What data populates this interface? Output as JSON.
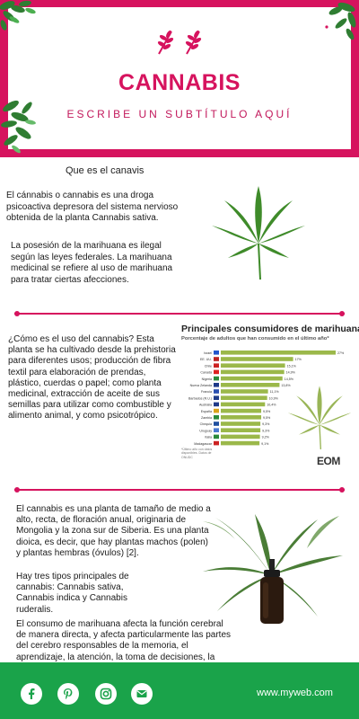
{
  "header": {
    "title": "CANNABIS",
    "subtitle": "ESCRIBE UN SUBTÍTULO AQUÍ"
  },
  "section1": {
    "heading": "Que es el canavis",
    "p1": "El cánnabis o cannabis  es una droga psicoactiva depresora del sistema nervioso obtenida de la planta Cannabis sativa.",
    "p2": "La posesión de la marihuana es ilegal según las leyes federales. La marihuana medicinal se refiere al uso de marihuana para tratar ciertas afecciones."
  },
  "section2": {
    "p": "¿Cómo es el uso del cannabis? Esta planta se ha cultivado desde la prehistoria para diferentes usos; producción de fibra textil para elaboración de prendas, plástico, cuerdas o papel; como planta medicinal, extracción de aceite de sus semillas para utilizar como combustible y alimento animal, y como psicotrópico."
  },
  "chart_data": {
    "type": "bar",
    "title": "Principales consumidores de marihuana",
    "subtitle": "Porcentaje de adultos que han consumido en el último año*",
    "categories": [
      "Israel",
      "EE. UU.",
      "Chile",
      "Canadá",
      "Nigeria",
      "Nueva Zelanda",
      "Francia",
      "Barbados (R.U.)",
      "Australia",
      "España",
      "Zambia",
      "Chequia",
      "Uruguay",
      "Italia",
      "Madagascar"
    ],
    "values": [
      27,
      17,
      15.1,
      14.9,
      14.5,
      13.8,
      11.1,
      10.9,
      10.4,
      9.5,
      9.5,
      9.3,
      9.3,
      9.2,
      9.1
    ],
    "value_labels": [
      "27%",
      "17%",
      "15,1%",
      "14,9%",
      "14,5%",
      "13,8%",
      "11,1%",
      "10,9%",
      "10,4%",
      "9,5%",
      "9,5%",
      "9,3%",
      "9,3%",
      "9,2%",
      "9,1%"
    ],
    "bar_color": "#9bb84a",
    "note": "*Último año con datos disponibles. Datos de ONUDC",
    "brand": "EOM"
  },
  "section3": {
    "p1": "El cannabis es una planta de tamaño de medio a alto, recta, de floración anual, originaria de Mongolia y la zona sur de Siberia. Es una planta dioica, es decir, que hay plantas machos (polen) y plantas hembras (óvulos) [2].",
    "p2": "Hay tres tipos principales de cannabis: Cannabis sativa, Cannabis indica y Cannabis ruderalis.",
    "p3": "El consumo de marihuana afecta la función cerebral de manera directa, y afecta particularmente las partes del cerebro responsables de la memoria, el aprendizaje, la atención, la toma de decisiones, la coordinación, las emociones y el tiempo de reacción."
  },
  "footer": {
    "website": "www.myweb.com",
    "icons": [
      "facebook-icon",
      "pinterest-icon",
      "instagram-icon",
      "mail-icon"
    ]
  },
  "colors": {
    "accent": "#d6135e",
    "footer": "#1aa34a",
    "leaf": "#3f8b2a"
  }
}
